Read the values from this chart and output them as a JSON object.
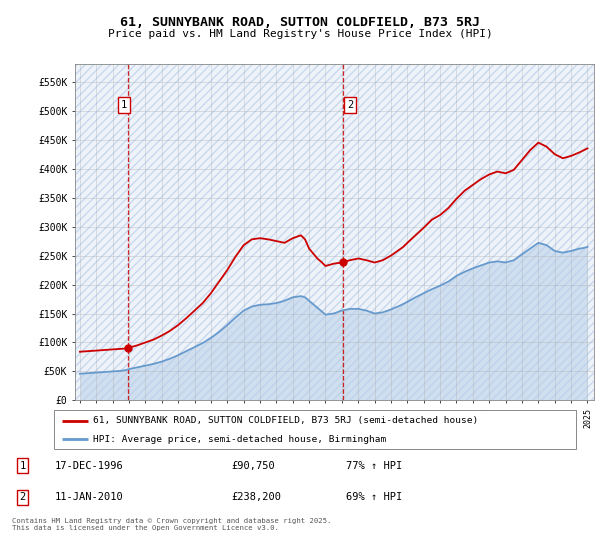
{
  "title": "61, SUNNYBANK ROAD, SUTTON COLDFIELD, B73 5RJ",
  "subtitle": "Price paid vs. HM Land Registry's House Price Index (HPI)",
  "legend_line1": "61, SUNNYBANK ROAD, SUTTON COLDFIELD, B73 5RJ (semi-detached house)",
  "legend_line2": "HPI: Average price, semi-detached house, Birmingham",
  "annotation1_label": "1",
  "annotation1_date": "17-DEC-1996",
  "annotation1_price": "£90,750",
  "annotation1_hpi": "77% ↑ HPI",
  "annotation1_year": 1996.96,
  "annotation1_value": 90750,
  "annotation2_label": "2",
  "annotation2_date": "11-JAN-2010",
  "annotation2_price": "£238,200",
  "annotation2_hpi": "69% ↑ HPI",
  "annotation2_year": 2010.04,
  "annotation2_value": 238200,
  "footer": "Contains HM Land Registry data © Crown copyright and database right 2025.\nThis data is licensed under the Open Government Licence v3.0.",
  "hpi_color": "#6699cc",
  "price_color": "#cc0000",
  "dashed_line_color": "#cc0000",
  "ylim": [
    0,
    580000
  ],
  "yticks": [
    0,
    50000,
    100000,
    150000,
    200000,
    250000,
    300000,
    350000,
    400000,
    450000,
    500000,
    550000
  ],
  "ytick_labels": [
    "£0",
    "£50K",
    "£100K",
    "£150K",
    "£200K",
    "£250K",
    "£300K",
    "£350K",
    "£400K",
    "£450K",
    "£500K",
    "£550K"
  ],
  "hpi_data": {
    "years": [
      1994,
      1994.25,
      1994.5,
      1994.75,
      1995,
      1995.25,
      1995.5,
      1995.75,
      1996,
      1996.25,
      1996.5,
      1996.75,
      1997,
      1997.25,
      1997.5,
      1997.75,
      1998,
      1998.25,
      1998.5,
      1998.75,
      1999,
      1999.25,
      1999.5,
      1999.75,
      2000,
      2000.25,
      2000.5,
      2000.75,
      2001,
      2001.25,
      2001.5,
      2001.75,
      2002,
      2002.25,
      2002.5,
      2002.75,
      2003,
      2003.25,
      2003.5,
      2003.75,
      2004,
      2004.25,
      2004.5,
      2004.75,
      2005,
      2005.25,
      2005.5,
      2005.75,
      2006,
      2006.25,
      2006.5,
      2006.75,
      2007,
      2007.25,
      2007.5,
      2007.75,
      2008,
      2008.25,
      2008.5,
      2008.75,
      2009,
      2009.25,
      2009.5,
      2009.75,
      2010,
      2010.25,
      2010.5,
      2010.75,
      2011,
      2011.25,
      2011.5,
      2011.75,
      2012,
      2012.25,
      2012.5,
      2012.75,
      2013,
      2013.25,
      2013.5,
      2013.75,
      2014,
      2014.25,
      2014.5,
      2014.75,
      2015,
      2015.25,
      2015.5,
      2015.75,
      2016,
      2016.25,
      2016.5,
      2016.75,
      2017,
      2017.25,
      2017.5,
      2017.75,
      2018,
      2018.25,
      2018.5,
      2018.75,
      2019,
      2019.25,
      2019.5,
      2019.75,
      2020,
      2020.25,
      2020.5,
      2020.75,
      2021,
      2021.25,
      2021.5,
      2021.75,
      2022,
      2022.25,
      2022.5,
      2022.75,
      2023,
      2023.25,
      2023.5,
      2023.75,
      2024,
      2024.25,
      2024.5,
      2024.75,
      2025
    ],
    "values": [
      46000,
      46500,
      47000,
      47500,
      48000,
      48500,
      49000,
      49500,
      50000,
      50500,
      51000,
      52000,
      54000,
      55500,
      57000,
      58500,
      60000,
      61500,
      63000,
      65000,
      67000,
      69500,
      72000,
      75000,
      78000,
      81500,
      85000,
      88500,
      92000,
      95500,
      99000,
      103500,
      108000,
      113000,
      118000,
      124000,
      130000,
      136500,
      143000,
      149000,
      155000,
      158500,
      162000,
      163500,
      165000,
      165500,
      166000,
      167000,
      168000,
      170000,
      172000,
      175000,
      178000,
      179000,
      180000,
      178000,
      172000,
      166000,
      160000,
      154000,
      148000,
      149000,
      150000,
      152500,
      155000,
      156500,
      158000,
      158000,
      158000,
      156500,
      155000,
      152500,
      150000,
      151000,
      152000,
      154500,
      157000,
      160000,
      163000,
      166500,
      170000,
      174000,
      178000,
      181500,
      185000,
      188500,
      192000,
      195000,
      198000,
      201500,
      205000,
      210000,
      215000,
      218500,
      222000,
      225000,
      228000,
      230500,
      233000,
      235500,
      238000,
      239000,
      240000,
      239000,
      238000,
      240000,
      242000,
      247000,
      252000,
      257000,
      262000,
      267000,
      272000,
      270000,
      268000,
      263000,
      258000,
      256500,
      255000,
      256500,
      258000,
      260000,
      262000,
      263000,
      265000
    ]
  },
  "price_data": {
    "years": [
      1994,
      1994.25,
      1994.5,
      1994.75,
      1995,
      1995.25,
      1995.5,
      1995.75,
      1996,
      1996.25,
      1996.5,
      1996.75,
      1997,
      1997.25,
      1997.5,
      1997.75,
      1998,
      1998.25,
      1998.5,
      1998.75,
      1999,
      1999.25,
      1999.5,
      1999.75,
      2000,
      2000.25,
      2000.5,
      2000.75,
      2001,
      2001.25,
      2001.5,
      2001.75,
      2002,
      2002.25,
      2002.5,
      2002.75,
      2003,
      2003.25,
      2003.5,
      2003.75,
      2004,
      2004.25,
      2004.5,
      2004.75,
      2005,
      2005.25,
      2005.5,
      2005.75,
      2006,
      2006.25,
      2006.5,
      2006.75,
      2007,
      2007.25,
      2007.5,
      2007.75,
      2008,
      2008.25,
      2008.5,
      2008.75,
      2009,
      2009.25,
      2009.5,
      2009.75,
      2010,
      2010.25,
      2010.5,
      2010.75,
      2011,
      2011.25,
      2011.5,
      2011.75,
      2012,
      2012.25,
      2012.5,
      2012.75,
      2013,
      2013.25,
      2013.5,
      2013.75,
      2014,
      2014.25,
      2014.5,
      2014.75,
      2015,
      2015.25,
      2015.5,
      2015.75,
      2016,
      2016.25,
      2016.5,
      2016.75,
      2017,
      2017.25,
      2017.5,
      2017.75,
      2018,
      2018.25,
      2018.5,
      2018.75,
      2019,
      2019.25,
      2019.5,
      2019.75,
      2020,
      2020.25,
      2020.5,
      2020.75,
      2021,
      2021.25,
      2021.5,
      2021.75,
      2022,
      2022.25,
      2022.5,
      2022.75,
      2023,
      2023.25,
      2023.5,
      2023.75,
      2024,
      2024.25,
      2024.5,
      2024.75,
      2025
    ],
    "values": [
      84000,
      84500,
      85000,
      85500,
      86000,
      86500,
      87000,
      87500,
      88000,
      88500,
      89000,
      89500,
      91000,
      93000,
      95000,
      97500,
      100000,
      102500,
      105000,
      108500,
      112000,
      116000,
      120000,
      125000,
      130000,
      136000,
      142000,
      148500,
      155000,
      161500,
      168000,
      176500,
      185000,
      195000,
      205000,
      215000,
      225000,
      236500,
      248000,
      258000,
      268000,
      273000,
      278000,
      279000,
      280000,
      279000,
      278000,
      276500,
      275000,
      273500,
      272000,
      276000,
      280000,
      282500,
      285000,
      278000,
      262000,
      253500,
      245000,
      239000,
      232000,
      234000,
      236000,
      237000,
      238000,
      240000,
      242000,
      243500,
      245000,
      243500,
      242000,
      240000,
      238000,
      240000,
      242000,
      246000,
      250000,
      255000,
      260000,
      265000,
      272000,
      278500,
      285000,
      291500,
      298000,
      305000,
      312000,
      316000,
      320000,
      326000,
      332000,
      340000,
      348000,
      355000,
      362000,
      367000,
      372000,
      377000,
      382000,
      386000,
      390000,
      392500,
      395000,
      393500,
      392000,
      395000,
      398000,
      406500,
      415000,
      423500,
      432000,
      438500,
      445000,
      441500,
      438000,
      431500,
      425000,
      421500,
      418000,
      420000,
      422000,
      425000,
      428000,
      431500,
      435000
    ]
  }
}
